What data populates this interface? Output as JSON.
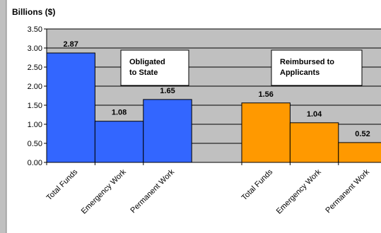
{
  "chart_data": {
    "type": "bar",
    "ylabel": "Billions ($)",
    "ylim": [
      0,
      3.5
    ],
    "yticks": [
      "0.00",
      "0.50",
      "1.00",
      "1.50",
      "2.00",
      "2.50",
      "3.00",
      "3.50"
    ],
    "grid": true,
    "groups": [
      {
        "name": "Obligated to State",
        "name_lines": [
          "Obligated",
          "to State"
        ],
        "color": "#3366FF",
        "categories": [
          "Total Funds",
          "Emergency Work",
          "Permanent  Work"
        ],
        "values": [
          2.87,
          1.08,
          1.65
        ],
        "value_labels": [
          "2.87",
          "1.08",
          "1.65"
        ]
      },
      {
        "name": "Reimbursed to Applicants",
        "name_lines": [
          "Reimbursed to",
          "Applicants"
        ],
        "color": "#FF9900",
        "categories": [
          "Total Funds",
          "Emergency Work",
          "Permanent  Work"
        ],
        "values": [
          1.56,
          1.04,
          0.52
        ],
        "value_labels": [
          "1.56",
          "1.04",
          "0.52"
        ]
      }
    ]
  },
  "colors": {
    "plot_background": "#C0C0C0",
    "border": "#808080"
  }
}
